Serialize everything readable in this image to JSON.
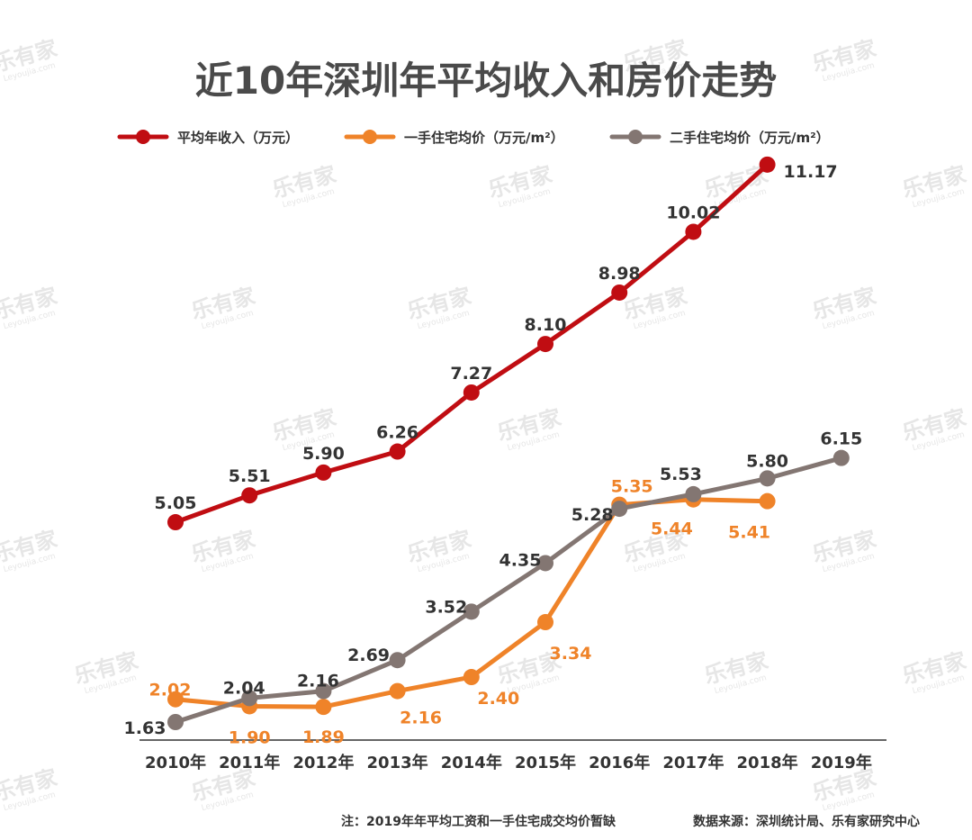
{
  "chart_data": {
    "type": "line",
    "title": "近10年深圳年平均收入和房价走势",
    "categories": [
      "2010年",
      "2011年",
      "2012年",
      "2013年",
      "2014年",
      "2015年",
      "2016年",
      "2017年",
      "2018年",
      "2019年"
    ],
    "series": [
      {
        "name": "平均年收入（万元）",
        "color": "#c00d12",
        "values": [
          5.05,
          5.51,
          5.9,
          6.26,
          7.27,
          8.1,
          8.98,
          10.02,
          11.17,
          null
        ],
        "labels": [
          "5.05",
          "5.51",
          "5.90",
          "6.26",
          "7.27",
          "8.10",
          "8.98",
          "10.02",
          "11.17",
          ""
        ]
      },
      {
        "name": "一手住宅均价（万元/m²）",
        "color": "#ef8329",
        "values": [
          2.02,
          1.9,
          1.89,
          2.16,
          2.4,
          3.34,
          5.35,
          5.44,
          5.41,
          null
        ],
        "labels": [
          "2.02",
          "1.90",
          "1.89",
          "2.16",
          "2.40",
          "3.34",
          "5.35",
          "5.44",
          "5.41",
          ""
        ]
      },
      {
        "name": "二手住宅均价（万元/m²）",
        "color": "#837672",
        "values": [
          1.63,
          2.04,
          2.16,
          2.69,
          3.52,
          4.35,
          5.28,
          5.53,
          5.8,
          6.15
        ],
        "labels": [
          "1.63",
          "2.04",
          "2.16",
          "2.69",
          "3.52",
          "4.35",
          "5.28",
          "5.53",
          "5.80",
          "6.15"
        ]
      }
    ],
    "legend": "top",
    "grid": false
  },
  "footnote": "注：2019年年平均工资和一手住宅成交均价暂缺",
  "source": "数据来源：深圳统计局、乐有家研究中心",
  "watermark": {
    "brand": "乐有家",
    "sub": "Leyoujia.com"
  }
}
